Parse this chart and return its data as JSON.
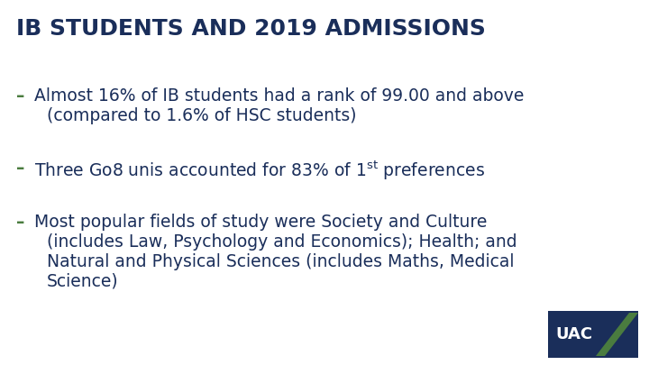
{
  "title": "IB STUDENTS AND 2019 ADMISSIONS",
  "title_color": "#1a2e5a",
  "title_fontsize": 18,
  "background_color": "#ffffff",
  "bullet_color": "#4a7c3f",
  "text_color": "#1a2e5a",
  "bullet_char": "–",
  "bullets": [
    {
      "line1": "Almost 16% of IB students had a rank of 99.00 and above",
      "line2": "(compared to 1.6% of HSC students)",
      "has_super": false
    },
    {
      "line1_pre": "Three Go8 unis accounted for 83% of 1",
      "line1_sup": "st",
      "line1_post": " preferences",
      "has_super": true
    },
    {
      "line1": "Most popular fields of study were Society and Culture",
      "line2": "(includes Law, Psychology and Economics); Health; and",
      "line3": "Natural and Physical Sciences (includes Maths, Medical",
      "line4": "Science)",
      "has_super": false
    }
  ],
  "bullet_fontsize": 13.5,
  "uac_box_color": "#1a2e5a",
  "uac_text": "UAC",
  "uac_arrow_color": "#4a7c3f"
}
